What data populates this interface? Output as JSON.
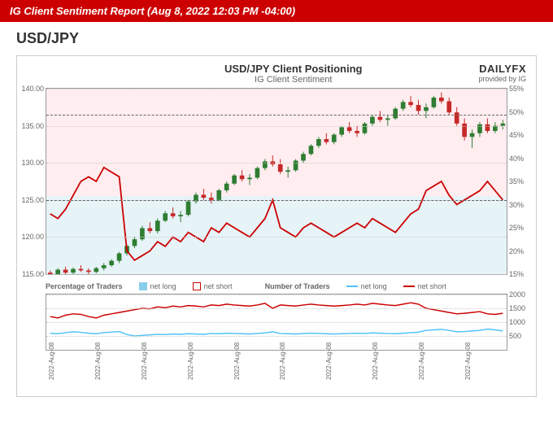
{
  "header": {
    "report_title": "IG Client Sentiment Report (Aug 8, 2022 12:03 PM -04:00)"
  },
  "pair": "USD/JPY",
  "chart": {
    "title": "USD/JPY Client Positioning",
    "subtitle": "IG Client Sentiment",
    "brand": {
      "main": "DAILYFX",
      "sub": "provided by IG"
    },
    "main": {
      "left_axis": {
        "min": 115,
        "max": 140,
        "ticks": [
          115.0,
          120.0,
          125.0,
          130.0,
          135.0,
          140.0
        ]
      },
      "right_axis": {
        "min": 15,
        "max": 55,
        "ticks": [
          15,
          20,
          25,
          30,
          35,
          40,
          45,
          50,
          55
        ]
      },
      "ref_price": 136.5,
      "ref_pct": 31,
      "bg_top_color": "rgba(255,182,193,0.25)",
      "bg_bot_color": "rgba(173,216,230,0.3)",
      "candle_color_up": "#2e7d32",
      "candle_color_down": "#c62828",
      "sentiment_color": "#cc0000",
      "price_series": [
        {
          "o": 115.2,
          "h": 115.5,
          "l": 114.8,
          "c": 115.0
        },
        {
          "o": 115.0,
          "h": 115.8,
          "l": 114.9,
          "c": 115.6
        },
        {
          "o": 115.6,
          "h": 116.0,
          "l": 115.0,
          "c": 115.2
        },
        {
          "o": 115.2,
          "h": 115.9,
          "l": 115.0,
          "c": 115.7
        },
        {
          "o": 115.7,
          "h": 116.2,
          "l": 115.3,
          "c": 115.5
        },
        {
          "o": 115.5,
          "h": 115.8,
          "l": 115.0,
          "c": 115.3
        },
        {
          "o": 115.3,
          "h": 116.0,
          "l": 115.1,
          "c": 115.8
        },
        {
          "o": 115.8,
          "h": 116.5,
          "l": 115.5,
          "c": 116.2
        },
        {
          "o": 116.2,
          "h": 117.0,
          "l": 116.0,
          "c": 116.8
        },
        {
          "o": 116.8,
          "h": 118.0,
          "l": 116.5,
          "c": 117.8
        },
        {
          "o": 117.8,
          "h": 119.0,
          "l": 117.5,
          "c": 118.8
        },
        {
          "o": 118.8,
          "h": 120.0,
          "l": 118.5,
          "c": 119.7
        },
        {
          "o": 119.7,
          "h": 121.5,
          "l": 119.5,
          "c": 121.2
        },
        {
          "o": 121.2,
          "h": 122.0,
          "l": 120.5,
          "c": 120.8
        },
        {
          "o": 120.8,
          "h": 122.5,
          "l": 120.5,
          "c": 122.2
        },
        {
          "o": 122.2,
          "h": 123.5,
          "l": 122.0,
          "c": 123.2
        },
        {
          "o": 123.2,
          "h": 124.0,
          "l": 122.5,
          "c": 122.8
        },
        {
          "o": 122.8,
          "h": 123.5,
          "l": 122.0,
          "c": 123.0
        },
        {
          "o": 123.0,
          "h": 125.0,
          "l": 122.8,
          "c": 124.8
        },
        {
          "o": 124.8,
          "h": 126.0,
          "l": 124.5,
          "c": 125.7
        },
        {
          "o": 125.7,
          "h": 126.5,
          "l": 125.0,
          "c": 125.3
        },
        {
          "o": 125.3,
          "h": 126.0,
          "l": 124.5,
          "c": 125.0
        },
        {
          "o": 125.0,
          "h": 126.5,
          "l": 124.8,
          "c": 126.3
        },
        {
          "o": 126.3,
          "h": 127.5,
          "l": 126.0,
          "c": 127.2
        },
        {
          "o": 127.2,
          "h": 128.5,
          "l": 127.0,
          "c": 128.3
        },
        {
          "o": 128.3,
          "h": 129.0,
          "l": 127.5,
          "c": 127.8
        },
        {
          "o": 127.8,
          "h": 128.5,
          "l": 127.0,
          "c": 128.0
        },
        {
          "o": 128.0,
          "h": 129.5,
          "l": 127.8,
          "c": 129.3
        },
        {
          "o": 129.3,
          "h": 130.5,
          "l": 129.0,
          "c": 130.2
        },
        {
          "o": 130.2,
          "h": 131.0,
          "l": 129.5,
          "c": 129.8
        },
        {
          "o": 129.8,
          "h": 130.5,
          "l": 128.5,
          "c": 128.8
        },
        {
          "o": 128.8,
          "h": 129.5,
          "l": 128.0,
          "c": 129.0
        },
        {
          "o": 129.0,
          "h": 130.5,
          "l": 128.8,
          "c": 130.3
        },
        {
          "o": 130.3,
          "h": 131.5,
          "l": 130.0,
          "c": 131.2
        },
        {
          "o": 131.2,
          "h": 132.5,
          "l": 131.0,
          "c": 132.3
        },
        {
          "o": 132.3,
          "h": 133.5,
          "l": 132.0,
          "c": 133.2
        },
        {
          "o": 133.2,
          "h": 134.0,
          "l": 132.5,
          "c": 132.8
        },
        {
          "o": 132.8,
          "h": 134.0,
          "l": 132.5,
          "c": 133.8
        },
        {
          "o": 133.8,
          "h": 135.0,
          "l": 133.5,
          "c": 134.8
        },
        {
          "o": 134.8,
          "h": 135.5,
          "l": 134.0,
          "c": 134.3
        },
        {
          "o": 134.3,
          "h": 135.0,
          "l": 133.5,
          "c": 134.0
        },
        {
          "o": 134.0,
          "h": 135.5,
          "l": 133.8,
          "c": 135.3
        },
        {
          "o": 135.3,
          "h": 136.5,
          "l": 135.0,
          "c": 136.2
        },
        {
          "o": 136.2,
          "h": 137.0,
          "l": 135.5,
          "c": 135.8
        },
        {
          "o": 135.8,
          "h": 136.5,
          "l": 135.0,
          "c": 136.0
        },
        {
          "o": 136.0,
          "h": 137.5,
          "l": 135.8,
          "c": 137.3
        },
        {
          "o": 137.3,
          "h": 138.5,
          "l": 137.0,
          "c": 138.2
        },
        {
          "o": 138.2,
          "h": 139.0,
          "l": 137.5,
          "c": 137.8
        },
        {
          "o": 137.8,
          "h": 138.5,
          "l": 136.5,
          "c": 137.0
        },
        {
          "o": 137.0,
          "h": 138.0,
          "l": 136.0,
          "c": 137.5
        },
        {
          "o": 137.5,
          "h": 139.0,
          "l": 137.3,
          "c": 138.8
        },
        {
          "o": 138.8,
          "h": 139.5,
          "l": 138.0,
          "c": 138.3
        },
        {
          "o": 138.3,
          "h": 138.8,
          "l": 136.5,
          "c": 136.8
        },
        {
          "o": 136.8,
          "h": 137.5,
          "l": 135.0,
          "c": 135.3
        },
        {
          "o": 135.3,
          "h": 136.0,
          "l": 133.0,
          "c": 133.5
        },
        {
          "o": 133.5,
          "h": 134.5,
          "l": 132.0,
          "c": 134.0
        },
        {
          "o": 134.0,
          "h": 135.5,
          "l": 133.5,
          "c": 135.2
        },
        {
          "o": 135.2,
          "h": 136.0,
          "l": 134.0,
          "c": 134.3
        },
        {
          "o": 134.3,
          "h": 135.5,
          "l": 134.0,
          "c": 135.0
        },
        {
          "o": 135.0,
          "h": 135.8,
          "l": 134.5,
          "c": 135.3
        }
      ],
      "sentiment_series": [
        28,
        27,
        29,
        32,
        35,
        36,
        35,
        38,
        37,
        36,
        20,
        18,
        19,
        20,
        22,
        21,
        23,
        22,
        24,
        23,
        22,
        25,
        24,
        26,
        25,
        24,
        23,
        25,
        27,
        31,
        25,
        24,
        23,
        25,
        26,
        25,
        24,
        23,
        24,
        25,
        26,
        25,
        27,
        26,
        25,
        24,
        26,
        28,
        29,
        33,
        34,
        35,
        32,
        30,
        31,
        32,
        33,
        35,
        33,
        31
      ]
    },
    "sub": {
      "legend_pct_title": "Percentage of Traders",
      "legend_num_title": "Number of Traders",
      "net_long_label": "net long",
      "net_short_label": "net short",
      "long_box_color": "#87ceeb",
      "short_box_color": "#cc0000",
      "long_line_color": "#4fc3f7",
      "short_line_color": "#cc0000",
      "right_axis": {
        "min": 0,
        "max": 2000,
        "ticks": [
          500,
          1000,
          1500,
          2000
        ]
      },
      "long_series": [
        600,
        580,
        620,
        650,
        630,
        600,
        580,
        620,
        640,
        660,
        550,
        500,
        520,
        540,
        560,
        550,
        570,
        560,
        580,
        570,
        560,
        590,
        580,
        600,
        590,
        580,
        570,
        590,
        610,
        650,
        590,
        580,
        570,
        590,
        600,
        590,
        580,
        570,
        580,
        590,
        600,
        590,
        610,
        600,
        590,
        580,
        600,
        620,
        640,
        700,
        720,
        740,
        700,
        650,
        660,
        680,
        700,
        750,
        720,
        680
      ],
      "short_series": [
        1200,
        1150,
        1250,
        1300,
        1280,
        1200,
        1150,
        1250,
        1300,
        1350,
        1400,
        1450,
        1500,
        1480,
        1550,
        1520,
        1580,
        1550,
        1600,
        1580,
        1550,
        1620,
        1600,
        1650,
        1620,
        1600,
        1580,
        1620,
        1680,
        1500,
        1620,
        1600,
        1580,
        1620,
        1650,
        1620,
        1600,
        1580,
        1600,
        1620,
        1650,
        1620,
        1680,
        1650,
        1620,
        1600,
        1650,
        1700,
        1650,
        1500,
        1450,
        1400,
        1350,
        1300,
        1320,
        1350,
        1380,
        1300,
        1280,
        1320
      ]
    },
    "x_labels": [
      "2022-Aug-08",
      "2022-Aug-08",
      "2022-Aug-08",
      "2022-Aug-08",
      "2022-Aug-08",
      "2022-Aug-08",
      "2022-Aug-08",
      "2022-Aug-08",
      "2022-Aug-08",
      "2022-Aug-08"
    ]
  }
}
